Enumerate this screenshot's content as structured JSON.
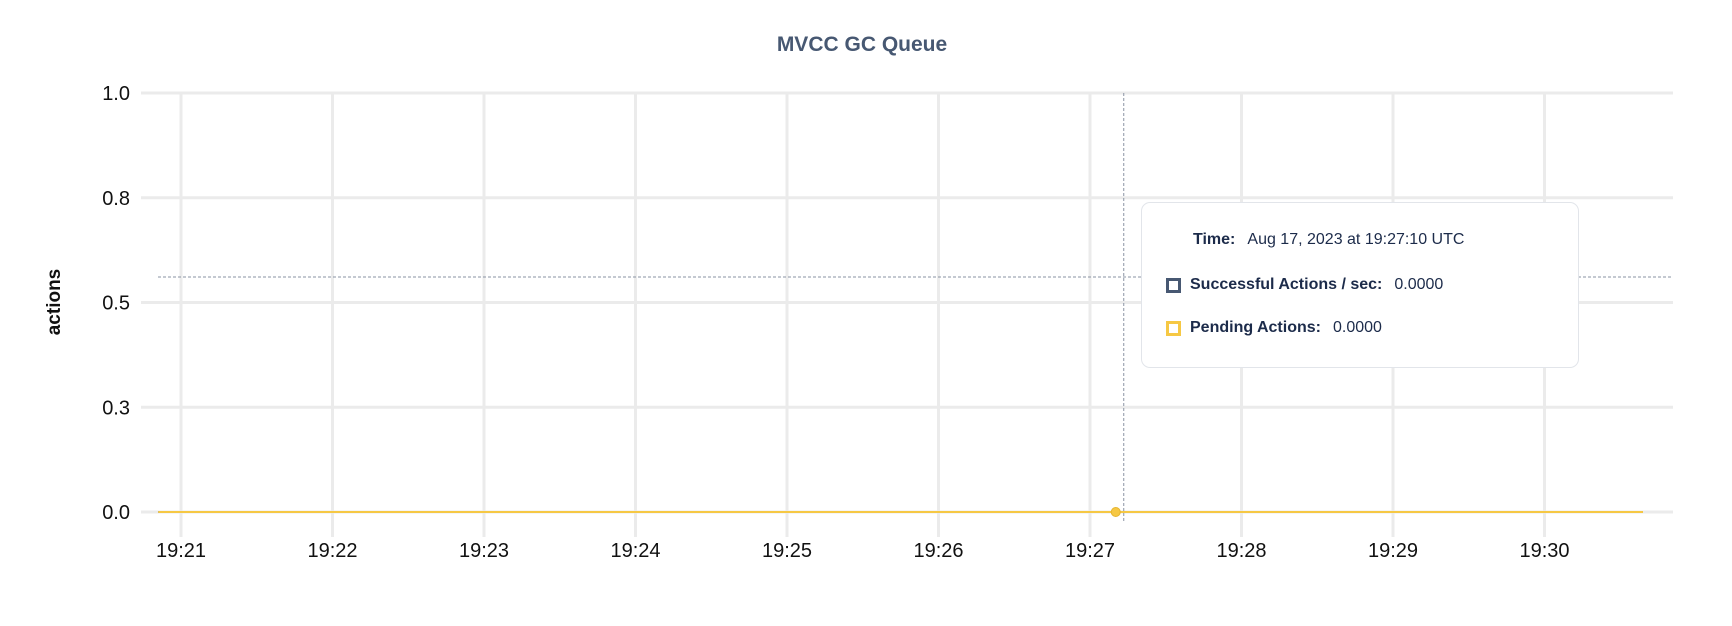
{
  "chart_data": {
    "type": "line",
    "title": "MVCC GC Queue",
    "ylabel": "actions",
    "xlabel": "",
    "ylim": [
      0,
      1
    ],
    "y_ticks": [
      0,
      0.25,
      0.5,
      0.75,
      1.0
    ],
    "y_tick_labels": [
      "0.0",
      "0.3",
      "0.5",
      "0.8",
      "1.0"
    ],
    "x_tick_labels": [
      "19:21",
      "19:22",
      "19:23",
      "19:24",
      "19:25",
      "19:26",
      "19:27",
      "19:28",
      "19:29",
      "19:30"
    ],
    "x_range_minutes": [
      20.85,
      30.75
    ],
    "grid": true,
    "series": [
      {
        "name": "Successful Actions / sec",
        "color": "#475872",
        "x_minutes": [
          20.85,
          30.65
        ],
        "values": [
          0,
          0
        ]
      },
      {
        "name": "Pending Actions",
        "color": "#f6c844",
        "x_minutes": [
          20.85,
          30.65
        ],
        "values": [
          0,
          0
        ]
      }
    ],
    "hover": {
      "x_minutes": 27.17,
      "y": 0
    }
  },
  "tooltip": {
    "time_label": "Time:",
    "time_value": "Aug 17, 2023 at 19:27:10 UTC",
    "rows": [
      {
        "label": "Successful Actions / sec:",
        "value": "0.0000",
        "color": "#475872"
      },
      {
        "label": "Pending Actions:",
        "value": "0.0000",
        "color": "#f6c844"
      }
    ]
  }
}
